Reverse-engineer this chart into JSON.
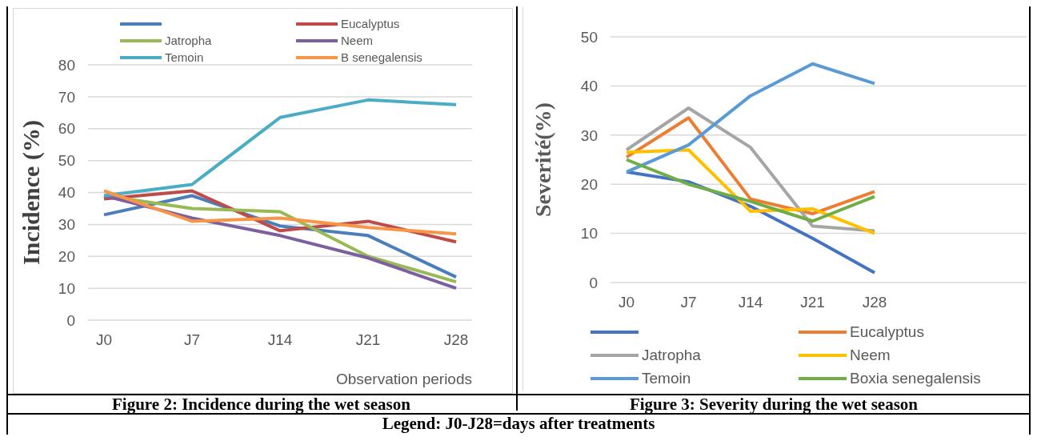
{
  "chart_data": [
    {
      "type": "line",
      "title": "Figure 2: Incidence during the wet season",
      "ylabel": "Incidence (%)",
      "xlabel": "Observation periods",
      "annotations": [
        "Legend: J0-J28=days after treatments"
      ],
      "categories": [
        "J0",
        "J7",
        "J14",
        "J21",
        "J28"
      ],
      "ylim": [
        0,
        80
      ],
      "yticks": [
        0,
        10,
        20,
        30,
        40,
        50,
        60,
        70,
        80
      ],
      "grid": "y",
      "legend": "top",
      "series": [
        {
          "name": null,
          "color": "#4a7ebb",
          "values": [
            33,
            39,
            29.5,
            26.5,
            13.5
          ]
        },
        {
          "name": "Eucalyptus",
          "color": "#be4b48",
          "values": [
            38,
            40.5,
            28,
            31,
            24.5
          ]
        },
        {
          "name": "Jatropha",
          "color": "#98b954",
          "values": [
            39,
            35,
            34,
            20,
            12
          ]
        },
        {
          "name": "Neem",
          "color": "#7d5fa0",
          "values": [
            39,
            32,
            26.5,
            19.5,
            10
          ]
        },
        {
          "name": "Temoin",
          "color": "#4bacc6",
          "values": [
            39,
            42.5,
            63.5,
            69,
            67.5
          ]
        },
        {
          "name": "B senegalensis",
          "color": "#f79646",
          "values": [
            40.5,
            31,
            32,
            29,
            27
          ]
        }
      ]
    },
    {
      "type": "line",
      "title": "Figure 3: Severity during the wet season",
      "ylabel": "Severité(%)",
      "categories": [
        "J0",
        "J7",
        "J14",
        "J21",
        "J28"
      ],
      "ylim": [
        0,
        50
      ],
      "yticks": [
        0,
        10,
        20,
        30,
        40,
        50
      ],
      "grid": "y",
      "legend": "bottom",
      "series": [
        {
          "name": null,
          "color": "#4472c4",
          "values": [
            22.5,
            20.5,
            15.5,
            9,
            2
          ]
        },
        {
          "name": "Eucalyptus",
          "color": "#ed7d31",
          "values": [
            25.5,
            33.5,
            17,
            14,
            18.5
          ]
        },
        {
          "name": "Jatropha",
          "color": "#a5a5a5",
          "values": [
            27,
            35.5,
            27.5,
            11.5,
            10.5
          ]
        },
        {
          "name": "Neem",
          "color": "#ffc000",
          "values": [
            26.5,
            27,
            14.5,
            15,
            10
          ]
        },
        {
          "name": "Temoin",
          "color": "#5b9bd5",
          "values": [
            22.5,
            28,
            38,
            44.5,
            40.5
          ]
        },
        {
          "name": "Boxia senegalensis",
          "color": "#70ad47",
          "values": [
            25,
            20,
            16.5,
            12.5,
            17.5
          ]
        }
      ]
    }
  ]
}
